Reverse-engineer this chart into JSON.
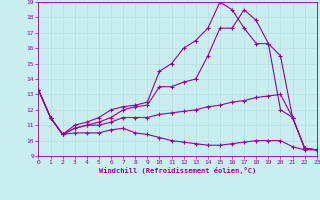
{
  "xlabel": "Windchill (Refroidissement éolien,°C)",
  "xlim": [
    0,
    23
  ],
  "ylim": [
    9,
    19
  ],
  "xticks": [
    0,
    1,
    2,
    3,
    4,
    5,
    6,
    7,
    8,
    9,
    10,
    11,
    12,
    13,
    14,
    15,
    16,
    17,
    18,
    19,
    20,
    21,
    22,
    23
  ],
  "yticks": [
    9,
    10,
    11,
    12,
    13,
    14,
    15,
    16,
    17,
    18,
    19
  ],
  "bg_color": "#c8eef0",
  "line_color": "#990099",
  "grid_color": "#b8dfe0",
  "lines": [
    {
      "x": [
        0,
        1,
        2,
        3,
        4,
        5,
        6,
        7,
        8,
        9,
        10,
        11,
        12,
        13,
        14,
        15,
        16,
        17,
        18,
        19,
        20,
        21,
        22,
        23
      ],
      "y": [
        13.3,
        11.5,
        10.4,
        10.5,
        10.5,
        10.5,
        10.7,
        10.8,
        10.5,
        10.4,
        10.2,
        10.0,
        9.9,
        9.8,
        9.7,
        9.7,
        9.8,
        9.9,
        10.0,
        10.0,
        10.0,
        9.6,
        9.4,
        9.4
      ]
    },
    {
      "x": [
        0,
        1,
        2,
        3,
        4,
        5,
        6,
        7,
        8,
        9,
        10,
        11,
        12,
        13,
        14,
        15,
        16,
        17,
        18,
        19,
        20,
        21,
        22,
        23
      ],
      "y": [
        13.3,
        11.5,
        10.4,
        10.8,
        11.0,
        11.0,
        11.2,
        11.5,
        11.5,
        11.5,
        11.7,
        11.8,
        11.9,
        12.0,
        12.2,
        12.3,
        12.5,
        12.6,
        12.8,
        12.9,
        13.0,
        11.5,
        9.5,
        9.4
      ]
    },
    {
      "x": [
        0,
        1,
        2,
        3,
        4,
        5,
        6,
        7,
        8,
        9,
        10,
        11,
        12,
        13,
        14,
        15,
        16,
        17,
        18,
        19,
        20,
        21,
        22,
        23
      ],
      "y": [
        13.3,
        11.5,
        10.4,
        10.8,
        11.0,
        11.2,
        11.5,
        12.0,
        12.2,
        12.3,
        13.5,
        13.5,
        13.8,
        14.0,
        15.5,
        17.3,
        17.3,
        18.5,
        17.8,
        16.3,
        12.0,
        11.5,
        9.5,
        9.4
      ]
    },
    {
      "x": [
        0,
        1,
        2,
        3,
        4,
        5,
        6,
        7,
        8,
        9,
        10,
        11,
        12,
        13,
        14,
        15,
        16,
        17,
        18,
        19,
        20,
        21,
        22,
        23
      ],
      "y": [
        13.3,
        11.5,
        10.4,
        11.0,
        11.2,
        11.5,
        12.0,
        12.2,
        12.3,
        12.5,
        14.5,
        15.0,
        16.0,
        16.5,
        17.3,
        19.0,
        18.5,
        17.3,
        16.3,
        16.3,
        15.5,
        11.5,
        9.5,
        9.4
      ]
    }
  ]
}
